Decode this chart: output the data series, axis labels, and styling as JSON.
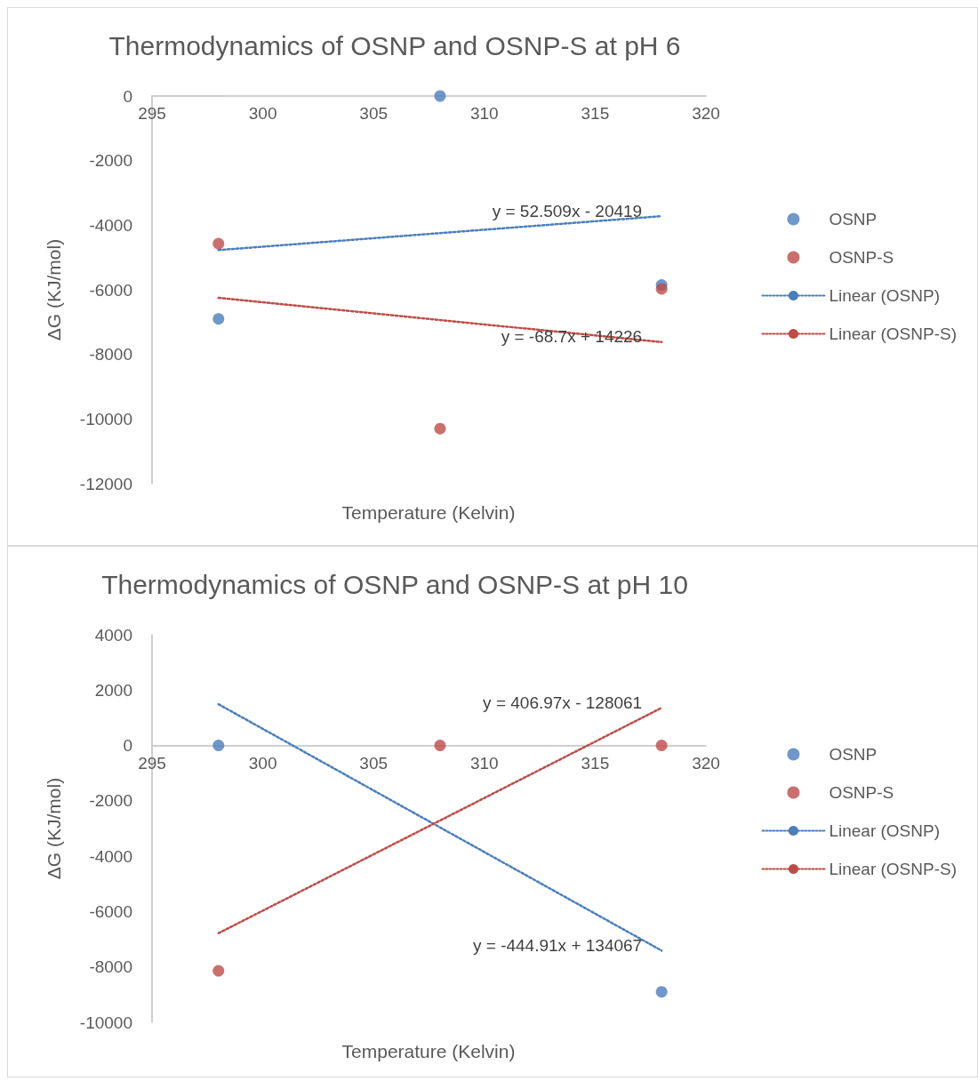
{
  "chart_data": [
    {
      "type": "scatter",
      "title": "Thermodynamics of OSNP and OSNP-S at pH 6",
      "xlabel": "Temperature (Kelvin)",
      "ylabel": "ΔG (KJ/mol)",
      "xlim": [
        295,
        320
      ],
      "xticks": [
        295,
        300,
        305,
        310,
        315,
        320
      ],
      "ylim": [
        -12000,
        0
      ],
      "yticks": [
        -12000,
        -10000,
        -8000,
        -6000,
        -4000,
        -2000,
        0
      ],
      "grid": false,
      "legend": "right",
      "series": [
        {
          "name": "OSNP",
          "marker": "circle",
          "color": "#4a7ebb",
          "x": [
            298,
            308,
            318
          ],
          "values": [
            -6900,
            0,
            -5850
          ]
        },
        {
          "name": "OSNP-S",
          "marker": "circle",
          "color": "#be4b48",
          "x": [
            298,
            308,
            318
          ],
          "values": [
            -4570,
            -10300,
            -5970
          ]
        },
        {
          "name": "Linear (OSNP)",
          "type": "line",
          "marker": "none",
          "line_style": "dotted",
          "color": "#4a7ebb",
          "x": [
            298,
            318
          ],
          "values": [
            -4770,
            -3720
          ]
        },
        {
          "name": "Linear (OSNP-S)",
          "type": "line",
          "marker": "none",
          "line_style": "dotted",
          "color": "#be4b48",
          "x": [
            298,
            318
          ],
          "values": [
            -6250,
            -7620
          ]
        }
      ],
      "annotations": [
        "y = 52.509x - 20419",
        "y = -68.7x + 14226"
      ]
    },
    {
      "type": "scatter",
      "title": "Thermodynamics of OSNP and OSNP-S at pH 10",
      "xlabel": "Temperature (Kelvin)",
      "ylabel": "ΔG (KJ/mol)",
      "xlim": [
        295,
        320
      ],
      "xticks": [
        295,
        300,
        305,
        310,
        315,
        320
      ],
      "ylim": [
        -10000,
        4000
      ],
      "yticks": [
        -10000,
        -8000,
        -6000,
        -4000,
        -2000,
        0,
        2000,
        4000
      ],
      "grid": false,
      "legend": "right",
      "series": [
        {
          "name": "OSNP",
          "marker": "circle",
          "color": "#4a7ebb",
          "x": [
            298,
            308,
            318
          ],
          "values": [
            0,
            null,
            -8900
          ]
        },
        {
          "name": "OSNP-S",
          "marker": "circle",
          "color": "#be4b48",
          "x": [
            298,
            308,
            318
          ],
          "values": [
            -8140,
            0,
            0
          ]
        },
        {
          "name": "Linear (OSNP)",
          "type": "line",
          "marker": "none",
          "line_style": "dotted",
          "color": "#4a7ebb",
          "x": [
            298,
            318
          ],
          "values": [
            1490,
            -7410
          ]
        },
        {
          "name": "Linear (OSNP-S)",
          "type": "line",
          "marker": "none",
          "line_style": "dotted",
          "color": "#be4b48",
          "x": [
            298,
            318
          ],
          "values": [
            -6780,
            1360
          ]
        }
      ],
      "annotations": [
        "y = -444.91x + 134067",
        "y = 406.97x - 128061"
      ]
    }
  ]
}
